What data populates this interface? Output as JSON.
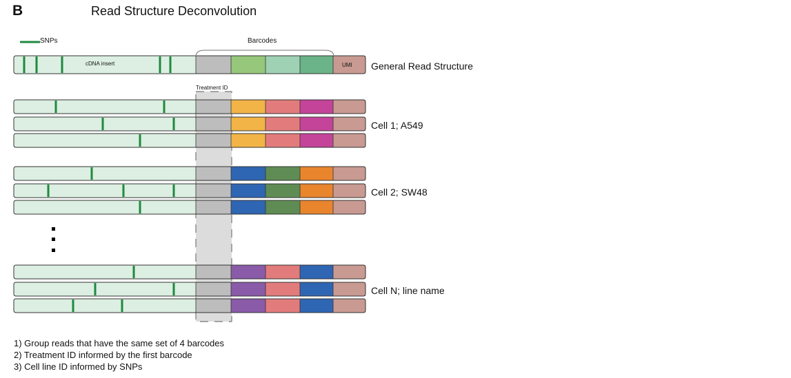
{
  "panel_letter": "B",
  "title": "Read Structure Deconvolution",
  "legend": {
    "snp_label": "SNPs"
  },
  "colors": {
    "insert_fill": "#dcefe2",
    "snp": "#1e8a3e",
    "treatment_segment": "#bdbdbd",
    "treatment_highlight": "#dcdcdc",
    "umi": "#c89a92",
    "outline": "#333333"
  },
  "general_read": {
    "insert_label": "cDNA insert",
    "umi_label": "UMI",
    "barcodes_label": "Barcodes",
    "row_label": "General Read Structure",
    "barcode_colors": [
      "#bdbdbd",
      "#96c77a",
      "#9fd1b4",
      "#6bb389"
    ]
  },
  "treatment_label": "Treatment ID",
  "groups": [
    {
      "label": "Cell 1;  A549",
      "barcode_colors": [
        "#f2b447",
        "#e27c7c",
        "#c4449a"
      ]
    },
    {
      "label": "Cell 2; SW48",
      "barcode_colors": [
        "#2f66b3",
        "#5f8c54",
        "#e8852d"
      ]
    },
    {
      "label": "Cell N; line name",
      "barcode_colors": [
        "#8a5ba8",
        "#e27c7c",
        "#2f66b3"
      ]
    }
  ],
  "notes": [
    "1) Group reads that have the same set of 4 barcodes",
    "2) Treatment ID informed by the first barcode",
    "3) Cell line ID informed by SNPs"
  ]
}
